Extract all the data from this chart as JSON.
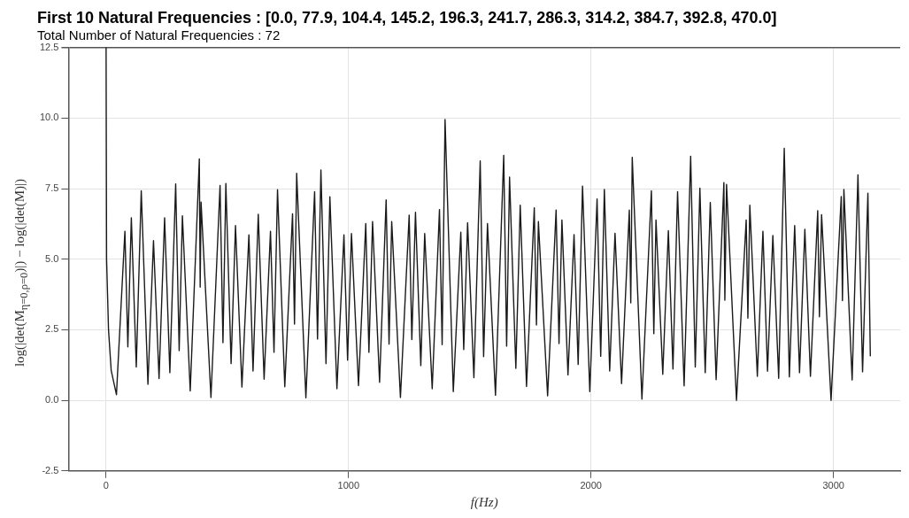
{
  "chart_data": {
    "type": "line",
    "title": "First 10 Natural Frequencies : [0.0, 77.9, 104.4, 145.2, 196.3, 241.7, 286.3, 314.2, 384.7, 392.8, 470.0]",
    "subtitle": "Total Number of Natural Frequencies : 72",
    "xlabel": "f(Hz)",
    "ylabel": "log(|det(M$_{η=0,ρ=0}$)|) − log(|det(M)|)",
    "xlim": [
      -155,
      3275
    ],
    "xticks": [
      0,
      1000,
      2000,
      3000
    ],
    "ylim": [
      -2.5,
      12.5
    ],
    "yticks": [
      -2.5,
      {
        "value": 0,
        "label": "0.0"
      },
      2.5,
      {
        "value": 5,
        "label": "5.0"
      },
      7.5,
      {
        "value": 10,
        "label": "10.0"
      },
      12.5
    ],
    "grid": true,
    "series": [
      {
        "color": "#1a1a1a",
        "x": [
          0,
          2,
          10,
          21,
          42.7,
          77.6,
          89.7,
          104.1,
          124.5,
          145,
          172.6,
          195.5,
          218.4,
          241.3,
          263,
          287,
          301.4,
          314.7,
          347,
          384.5,
          388.1,
          391.7,
          432.5,
          470,
          482,
          494,
          515.6,
          533.7,
          560.2,
          589,
          606,
          627.6,
          651.7,
          678,
          692.5,
          707,
          737,
          769,
          777,
          786,
          824,
          860,
          872,
          886,
          907,
          923,
          952,
          981,
          996,
          1012,
          1041,
          1071,
          1084,
          1099,
          1128,
          1155,
          1167,
          1178,
          1214,
          1250,
          1261,
          1276,
          1298,
          1314,
          1345,
          1375,
          1386,
          1398,
          1432,
          1463,
          1475,
          1491,
          1517,
          1543,
          1557,
          1573,
          1606,
          1640,
          1652,
          1664,
          1690,
          1708,
          1734,
          1766,
          1775,
          1783,
          1821,
          1856,
          1868,
          1880,
          1905,
          1930,
          1947,
          1965,
          1995,
          2025,
          2040,
          2055,
          2077,
          2099,
          2126,
          2158,
          2164,
          2170,
          2210,
          2249,
          2259,
          2268,
          2296,
          2319,
          2338,
          2357,
          2384,
          2411,
          2430,
          2449,
          2471,
          2492,
          2516,
          2548,
          2552,
          2559,
          2600,
          2640,
          2647,
          2655,
          2686,
          2709,
          2728,
          2750,
          2774,
          2797,
          2818,
          2840,
          2860,
          2882,
          2905,
          2935,
          2942,
          2951,
          2990,
          3032,
          3037,
          3043,
          3077,
          3101,
          3120,
          3142,
          3152
        ],
        "values": [
          12.5,
          5.0,
          2.5,
          1.06,
          0.2,
          5.99,
          1.89,
          6.47,
          1.18,
          7.42,
          0.57,
          5.66,
          0.77,
          6.47,
          0.98,
          7.67,
          1.76,
          6.54,
          0.33,
          8.55,
          4.01,
          7.02,
          0.1,
          7.61,
          2.04,
          7.68,
          1.3,
          6.19,
          0.47,
          5.86,
          1.04,
          6.59,
          0.75,
          5.99,
          1.7,
          7.46,
          0.48,
          6.61,
          2.7,
          8.04,
          0.09,
          7.39,
          2.17,
          8.16,
          1.3,
          7.21,
          0.41,
          5.86,
          1.42,
          5.91,
          0.52,
          6.26,
          1.7,
          6.33,
          0.64,
          7.1,
          1.99,
          6.33,
          0.1,
          6.56,
          2.15,
          6.66,
          1.23,
          5.91,
          0.41,
          6.76,
          1.97,
          9.95,
          0.31,
          5.96,
          1.8,
          6.29,
          0.8,
          8.48,
          1.55,
          6.26,
          0.18,
          8.68,
          1.92,
          7.91,
          1.13,
          6.91,
          0.49,
          6.82,
          2.67,
          6.33,
          0.16,
          6.74,
          2.01,
          6.39,
          0.9,
          5.87,
          1.27,
          7.59,
          0.31,
          7.13,
          1.56,
          7.47,
          1.04,
          5.92,
          0.59,
          6.74,
          3.45,
          8.61,
          0.04,
          7.42,
          2.36,
          6.39,
          0.92,
          6.01,
          1.11,
          7.39,
          0.51,
          8.65,
          1.18,
          7.52,
          0.98,
          7.01,
          0.73,
          7.71,
          3.55,
          7.65,
          0.0,
          6.39,
          2.91,
          6.91,
          0.85,
          5.99,
          1.03,
          5.84,
          0.78,
          8.93,
          0.83,
          6.19,
          0.98,
          6.06,
          0.85,
          6.72,
          2.96,
          6.58,
          0.0,
          7.22,
          3.53,
          7.47,
          0.72,
          7.99,
          1.01,
          7.34,
          1.56
        ]
      }
    ]
  }
}
